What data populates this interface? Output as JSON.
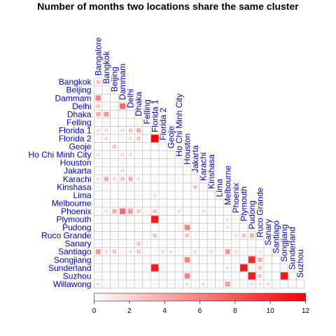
{
  "chart_data": {
    "type": "heatmap",
    "title": "Number of months two locations share the same cluster",
    "locations": [
      "Bangalore",
      "Bangkok",
      "Beijing",
      "Dammam",
      "Delhi",
      "Dhaka",
      "Felling",
      "Florida 1",
      "Florida 2",
      "Geoje",
      "Ho Chi Minh City",
      "Houston",
      "Jakarta",
      "Karachi",
      "Kinshasa",
      "Lima",
      "Melbourne",
      "Phoenix",
      "Plymouth",
      "Pudong",
      "Ruco Grande",
      "Sanary",
      "Santiago",
      "Songjiang",
      "Sunderland",
      "Suzhou",
      "Willawong"
    ],
    "color_scale": {
      "min": 0,
      "max": 12,
      "colors": [
        "#ffffff",
        "#ff0000"
      ],
      "ticks": [
        0,
        2,
        4,
        6,
        8,
        10,
        12
      ]
    },
    "cells": [
      {
        "row": "Bangkok",
        "col": "Bangalore",
        "value": 3
      },
      {
        "row": "Beijing",
        "col": "Bangalore",
        "value": 1
      },
      {
        "row": "Beijing",
        "col": "Bangkok",
        "value": 1
      },
      {
        "row": "Dammam",
        "col": "Bangalore",
        "value": 6
      },
      {
        "row": "Dammam",
        "col": "Bangkok",
        "value": 1
      },
      {
        "row": "Dammam",
        "col": "Beijing",
        "value": 1
      },
      {
        "row": "Delhi",
        "col": "Bangalore",
        "value": 3
      },
      {
        "row": "Delhi",
        "col": "Bangkok",
        "value": 1
      },
      {
        "row": "Delhi",
        "col": "Beijing",
        "value": 1
      },
      {
        "row": "Delhi",
        "col": "Dammam",
        "value": 7
      },
      {
        "row": "Dhaka",
        "col": "Bangalore",
        "value": 4
      },
      {
        "row": "Dhaka",
        "col": "Bangkok",
        "value": 5
      },
      {
        "row": "Dhaka",
        "col": "Beijing",
        "value": 1
      },
      {
        "row": "Dhaka",
        "col": "Dammam",
        "value": 1
      },
      {
        "row": "Dhaka",
        "col": "Delhi",
        "value": 1
      },
      {
        "row": "Felling",
        "col": "Bangalore",
        "value": 1
      },
      {
        "row": "Felling",
        "col": "Bangkok",
        "value": 1
      },
      {
        "row": "Florida 1",
        "col": "Bangalore",
        "value": 2
      },
      {
        "row": "Florida 1",
        "col": "Bangkok",
        "value": 2
      },
      {
        "row": "Florida 1",
        "col": "Beijing",
        "value": 1
      },
      {
        "row": "Florida 1",
        "col": "Dammam",
        "value": 2
      },
      {
        "row": "Florida 1",
        "col": "Delhi",
        "value": 3
      },
      {
        "row": "Florida 1",
        "col": "Dhaka",
        "value": 4
      },
      {
        "row": "Florida 2",
        "col": "Bangalore",
        "value": 1
      },
      {
        "row": "Florida 2",
        "col": "Bangkok",
        "value": 2
      },
      {
        "row": "Florida 2",
        "col": "Beijing",
        "value": 1
      },
      {
        "row": "Florida 2",
        "col": "Dammam",
        "value": 1
      },
      {
        "row": "Florida 2",
        "col": "Delhi",
        "value": 2
      },
      {
        "row": "Florida 2",
        "col": "Dhaka",
        "value": 3
      },
      {
        "row": "Florida 2",
        "col": "Florida 1",
        "value": 12
      },
      {
        "row": "Geoje",
        "col": "Bangalore",
        "value": 1
      },
      {
        "row": "Geoje",
        "col": "Bangkok",
        "value": 1
      },
      {
        "row": "Geoje",
        "col": "Beijing",
        "value": 3
      },
      {
        "row": "Geoje",
        "col": "Delhi",
        "value": 1
      },
      {
        "row": "Geoje",
        "col": "Dhaka",
        "value": 1
      },
      {
        "row": "Ho Chi Minh City",
        "col": "Bangalore",
        "value": 2
      },
      {
        "row": "Ho Chi Minh City",
        "col": "Bangkok",
        "value": 1
      },
      {
        "row": "Ho Chi Minh City",
        "col": "Beijing",
        "value": 1
      },
      {
        "row": "Ho Chi Minh City",
        "col": "Dammam",
        "value": 2
      },
      {
        "row": "Ho Chi Minh City",
        "col": "Delhi",
        "value": 2
      },
      {
        "row": "Ho Chi Minh City",
        "col": "Dhaka",
        "value": 1
      },
      {
        "row": "Houston",
        "col": "Bangalore",
        "value": 1
      },
      {
        "row": "Houston",
        "col": "Bangkok",
        "value": 1
      },
      {
        "row": "Houston",
        "col": "Dammam",
        "value": 1
      },
      {
        "row": "Houston",
        "col": "Dhaka",
        "value": 1
      },
      {
        "row": "Houston",
        "col": "Ho Chi Minh City",
        "value": 1
      },
      {
        "row": "Jakarta",
        "col": "Bangalore",
        "value": 1
      },
      {
        "row": "Jakarta",
        "col": "Bangkok",
        "value": 1
      },
      {
        "row": "Jakarta",
        "col": "Dammam",
        "value": 2
      },
      {
        "row": "Jakarta",
        "col": "Delhi",
        "value": 1
      },
      {
        "row": "Jakarta",
        "col": "Houston",
        "value": 1
      },
      {
        "row": "Karachi",
        "col": "Bangalore",
        "value": 2
      },
      {
        "row": "Karachi",
        "col": "Bangkok",
        "value": 4
      },
      {
        "row": "Karachi",
        "col": "Beijing",
        "value": 2
      },
      {
        "row": "Karachi",
        "col": "Dammam",
        "value": 3
      },
      {
        "row": "Karachi",
        "col": "Delhi",
        "value": 4
      },
      {
        "row": "Karachi",
        "col": "Dhaka",
        "value": 2
      },
      {
        "row": "Karachi",
        "col": "Florida 1",
        "value": 1
      },
      {
        "row": "Karachi",
        "col": "Geoje",
        "value": 1
      },
      {
        "row": "Karachi",
        "col": "Ho Chi Minh City",
        "value": 1
      },
      {
        "row": "Karachi",
        "col": "Houston",
        "value": 1
      },
      {
        "row": "Karachi",
        "col": "Jakarta",
        "value": 1
      },
      {
        "row": "Kinshasa",
        "col": "Bangalore",
        "value": 1
      },
      {
        "row": "Kinshasa",
        "col": "Bangkok",
        "value": 1
      },
      {
        "row": "Kinshasa",
        "col": "Dammam",
        "value": 1
      },
      {
        "row": "Kinshasa",
        "col": "Delhi",
        "value": 1
      },
      {
        "row": "Kinshasa",
        "col": "Dhaka",
        "value": 1
      },
      {
        "row": "Kinshasa",
        "col": "Jakarta",
        "value": 3
      },
      {
        "row": "Kinshasa",
        "col": "Karachi",
        "value": 1
      },
      {
        "row": "Lima",
        "col": "Dhaka",
        "value": 1
      },
      {
        "row": "Lima",
        "col": "Florida 1",
        "value": 2
      },
      {
        "row": "Lima",
        "col": "Karachi",
        "value": 1
      },
      {
        "row": "Melbourne",
        "col": "Bangalore",
        "value": 1
      },
      {
        "row": "Melbourne",
        "col": "Bangkok",
        "value": 1
      },
      {
        "row": "Melbourne",
        "col": "Beijing",
        "value": 1
      },
      {
        "row": "Melbourne",
        "col": "Delhi",
        "value": 1
      },
      {
        "row": "Melbourne",
        "col": "Karachi",
        "value": 1
      },
      {
        "row": "Phoenix",
        "col": "Bangalore",
        "value": 1
      },
      {
        "row": "Phoenix",
        "col": "Bangkok",
        "value": 2
      },
      {
        "row": "Phoenix",
        "col": "Beijing",
        "value": 4
      },
      {
        "row": "Phoenix",
        "col": "Dammam",
        "value": 7
      },
      {
        "row": "Phoenix",
        "col": "Delhi",
        "value": 5
      },
      {
        "row": "Phoenix",
        "col": "Dhaka",
        "value": 3
      },
      {
        "row": "Phoenix",
        "col": "Felling",
        "value": 1
      },
      {
        "row": "Phoenix",
        "col": "Florida 1",
        "value": 3
      },
      {
        "row": "Phoenix",
        "col": "Florida 2",
        "value": 1
      },
      {
        "row": "Phoenix",
        "col": "Ho Chi Minh City",
        "value": 2
      },
      {
        "row": "Phoenix",
        "col": "Houston",
        "value": 1
      },
      {
        "row": "Phoenix",
        "col": "Karachi",
        "value": 2
      },
      {
        "row": "Phoenix",
        "col": "Lima",
        "value": 1
      },
      {
        "row": "Phoenix",
        "col": "Melbourne",
        "value": 1
      },
      {
        "row": "Plymouth",
        "col": "Bangalore",
        "value": 1
      },
      {
        "row": "Plymouth",
        "col": "Florida 1",
        "value": 11
      },
      {
        "row": "Plymouth",
        "col": "Florida 2",
        "value": 1
      },
      {
        "row": "Plymouth",
        "col": "Melbourne",
        "value": 2
      },
      {
        "row": "Plymouth",
        "col": "Phoenix",
        "value": 1
      },
      {
        "row": "Pudong",
        "col": "Bangalore",
        "value": 1
      },
      {
        "row": "Pudong",
        "col": "Beijing",
        "value": 1
      },
      {
        "row": "Pudong",
        "col": "Dhaka",
        "value": 1
      },
      {
        "row": "Pudong",
        "col": "Florida 2",
        "value": 1
      },
      {
        "row": "Pudong",
        "col": "Ho Chi Minh City",
        "value": 1
      },
      {
        "row": "Pudong",
        "col": "Houston",
        "value": 6
      },
      {
        "row": "Pudong",
        "col": "Karachi",
        "value": 1
      },
      {
        "row": "Pudong",
        "col": "Melbourne",
        "value": 2
      },
      {
        "row": "Pudong",
        "col": "Phoenix",
        "value": 1
      },
      {
        "row": "Pudong",
        "col": "Plymouth",
        "value": 1
      },
      {
        "row": "Ruco Grande",
        "col": "Bangalore",
        "value": 1
      },
      {
        "row": "Ruco Grande",
        "col": "Beijing",
        "value": 1
      },
      {
        "row": "Ruco Grande",
        "col": "Florida 1",
        "value": 3
      },
      {
        "row": "Ruco Grande",
        "col": "Houston",
        "value": 3
      },
      {
        "row": "Ruco Grande",
        "col": "Jakarta",
        "value": 1
      },
      {
        "row": "Ruco Grande",
        "col": "Karachi",
        "value": 1
      },
      {
        "row": "Ruco Grande",
        "col": "Lima",
        "value": 1
      },
      {
        "row": "Ruco Grande",
        "col": "Melbourne",
        "value": 1
      },
      {
        "row": "Ruco Grande",
        "col": "Phoenix",
        "value": 2
      },
      {
        "row": "Ruco Grande",
        "col": "Plymouth",
        "value": 3
      },
      {
        "row": "Ruco Grande",
        "col": "Pudong",
        "value": 4
      },
      {
        "row": "Sanary",
        "col": "Bangalore",
        "value": 1
      },
      {
        "row": "Sanary",
        "col": "Bangkok",
        "value": 1
      },
      {
        "row": "Sanary",
        "col": "Beijing",
        "value": 1
      },
      {
        "row": "Sanary",
        "col": "Dammam",
        "value": 1
      },
      {
        "row": "Sanary",
        "col": "Delhi",
        "value": 1
      },
      {
        "row": "Sanary",
        "col": "Dhaka",
        "value": 3
      },
      {
        "row": "Sanary",
        "col": "Felling",
        "value": 1
      },
      {
        "row": "Sanary",
        "col": "Geoje",
        "value": 1
      },
      {
        "row": "Sanary",
        "col": "Houston",
        "value": 1
      },
      {
        "row": "Sanary",
        "col": "Kinshasa",
        "value": 1
      },
      {
        "row": "Sanary",
        "col": "Melbourne",
        "value": 1
      },
      {
        "row": "Sanary",
        "col": "Phoenix",
        "value": 1
      },
      {
        "row": "Sanary",
        "col": "Pudong",
        "value": 1
      },
      {
        "row": "Santiago",
        "col": "Bangalore",
        "value": 5
      },
      {
        "row": "Santiago",
        "col": "Bangkok",
        "value": 2
      },
      {
        "row": "Santiago",
        "col": "Beijing",
        "value": 3
      },
      {
        "row": "Santiago",
        "col": "Dammam",
        "value": 1
      },
      {
        "row": "Santiago",
        "col": "Delhi",
        "value": 2
      },
      {
        "row": "Santiago",
        "col": "Dhaka",
        "value": 3
      },
      {
        "row": "Santiago",
        "col": "Florida 1",
        "value": 1
      },
      {
        "row": "Santiago",
        "col": "Florida 2",
        "value": 2
      },
      {
        "row": "Santiago",
        "col": "Geoje",
        "value": 2
      },
      {
        "row": "Santiago",
        "col": "Ho Chi Minh City",
        "value": 1
      },
      {
        "row": "Santiago",
        "col": "Houston",
        "value": 1
      },
      {
        "row": "Santiago",
        "col": "Jakarta",
        "value": 2
      },
      {
        "row": "Santiago",
        "col": "Karachi",
        "value": 1
      },
      {
        "row": "Santiago",
        "col": "Kinshasa",
        "value": 2
      },
      {
        "row": "Santiago",
        "col": "Lima",
        "value": 1
      },
      {
        "row": "Santiago",
        "col": "Melbourne",
        "value": 5
      },
      {
        "row": "Santiago",
        "col": "Phoenix",
        "value": 2
      },
      {
        "row": "Santiago",
        "col": "Plymouth",
        "value": 1
      },
      {
        "row": "Santiago",
        "col": "Pudong",
        "value": 1
      },
      {
        "row": "Santiago",
        "col": "Ruco Grande",
        "value": 2
      },
      {
        "row": "Songjiang",
        "col": "Bangalore",
        "value": 1
      },
      {
        "row": "Songjiang",
        "col": "Beijing",
        "value": 1
      },
      {
        "row": "Songjiang",
        "col": "Delhi",
        "value": 1
      },
      {
        "row": "Songjiang",
        "col": "Florida 1",
        "value": 1
      },
      {
        "row": "Songjiang",
        "col": "Houston",
        "value": 6
      },
      {
        "row": "Songjiang",
        "col": "Karachi",
        "value": 1
      },
      {
        "row": "Songjiang",
        "col": "Melbourne",
        "value": 1
      },
      {
        "row": "Songjiang",
        "col": "Phoenix",
        "value": 1
      },
      {
        "row": "Songjiang",
        "col": "Plymouth",
        "value": 1
      },
      {
        "row": "Songjiang",
        "col": "Pudong",
        "value": 10
      },
      {
        "row": "Songjiang",
        "col": "Ruco Grande",
        "value": 4
      },
      {
        "row": "Songjiang",
        "col": "Sanary",
        "value": 1
      },
      {
        "row": "Sunderland",
        "col": "Bangalore",
        "value": 1
      },
      {
        "row": "Sunderland",
        "col": "Florida 1",
        "value": 11
      },
      {
        "row": "Sunderland",
        "col": "Florida 2",
        "value": 1
      },
      {
        "row": "Sunderland",
        "col": "Houston",
        "value": 1
      },
      {
        "row": "Sunderland",
        "col": "Melbourne",
        "value": 2
      },
      {
        "row": "Sunderland",
        "col": "Phoenix",
        "value": 1
      },
      {
        "row": "Sunderland",
        "col": "Plymouth",
        "value": 11
      },
      {
        "row": "Sunderland",
        "col": "Pudong",
        "value": 1
      },
      {
        "row": "Sunderland",
        "col": "Ruco Grande",
        "value": 3
      },
      {
        "row": "Sunderland",
        "col": "Songjiang",
        "value": 1
      },
      {
        "row": "Suzhou",
        "col": "Bangalore",
        "value": 1
      },
      {
        "row": "Suzhou",
        "col": "Florida 1",
        "value": 1
      },
      {
        "row": "Suzhou",
        "col": "Houston",
        "value": 6
      },
      {
        "row": "Suzhou",
        "col": "Karachi",
        "value": 1
      },
      {
        "row": "Suzhou",
        "col": "Melbourne",
        "value": 1
      },
      {
        "row": "Suzhou",
        "col": "Phoenix",
        "value": 1
      },
      {
        "row": "Suzhou",
        "col": "Pudong",
        "value": 11
      },
      {
        "row": "Suzhou",
        "col": "Ruco Grande",
        "value": 3
      },
      {
        "row": "Suzhou",
        "col": "Sanary",
        "value": 1
      },
      {
        "row": "Suzhou",
        "col": "Songjiang",
        "value": 11
      },
      {
        "row": "Willawong",
        "col": "Bangalore",
        "value": 2
      },
      {
        "row": "Willawong",
        "col": "Bangkok",
        "value": 1
      },
      {
        "row": "Willawong",
        "col": "Beijing",
        "value": 1
      },
      {
        "row": "Willawong",
        "col": "Dammam",
        "value": 1
      },
      {
        "row": "Willawong",
        "col": "Delhi",
        "value": 1
      },
      {
        "row": "Willawong",
        "col": "Dhaka",
        "value": 1
      },
      {
        "row": "Willawong",
        "col": "Florida 1",
        "value": 1
      },
      {
        "row": "Willawong",
        "col": "Florida 2",
        "value": 1
      },
      {
        "row": "Willawong",
        "col": "Geoje",
        "value": 1
      },
      {
        "row": "Willawong",
        "col": "Ho Chi Minh City",
        "value": 1
      },
      {
        "row": "Willawong",
        "col": "Houston",
        "value": 2
      },
      {
        "row": "Willawong",
        "col": "Jakarta",
        "value": 1
      },
      {
        "row": "Willawong",
        "col": "Karachi",
        "value": 2
      },
      {
        "row": "Willawong",
        "col": "Kinshasa",
        "value": 1
      },
      {
        "row": "Willawong",
        "col": "Lima",
        "value": 1
      },
      {
        "row": "Willawong",
        "col": "Melbourne",
        "value": 5
      },
      {
        "row": "Willawong",
        "col": "Phoenix",
        "value": 1
      },
      {
        "row": "Willawong",
        "col": "Plymouth",
        "value": 1
      },
      {
        "row": "Willawong",
        "col": "Pudong",
        "value": 2
      },
      {
        "row": "Willawong",
        "col": "Ruco Grande",
        "value": 2
      },
      {
        "row": "Willawong",
        "col": "Sanary",
        "value": 2
      },
      {
        "row": "Willawong",
        "col": "Santiago",
        "value": 1
      },
      {
        "row": "Willawong",
        "col": "Songjiang",
        "value": 1
      },
      {
        "row": "Willawong",
        "col": "Sunderland",
        "value": 1
      }
    ],
    "label_color": "#0000cc",
    "grid_color": "#c8c8c8"
  }
}
